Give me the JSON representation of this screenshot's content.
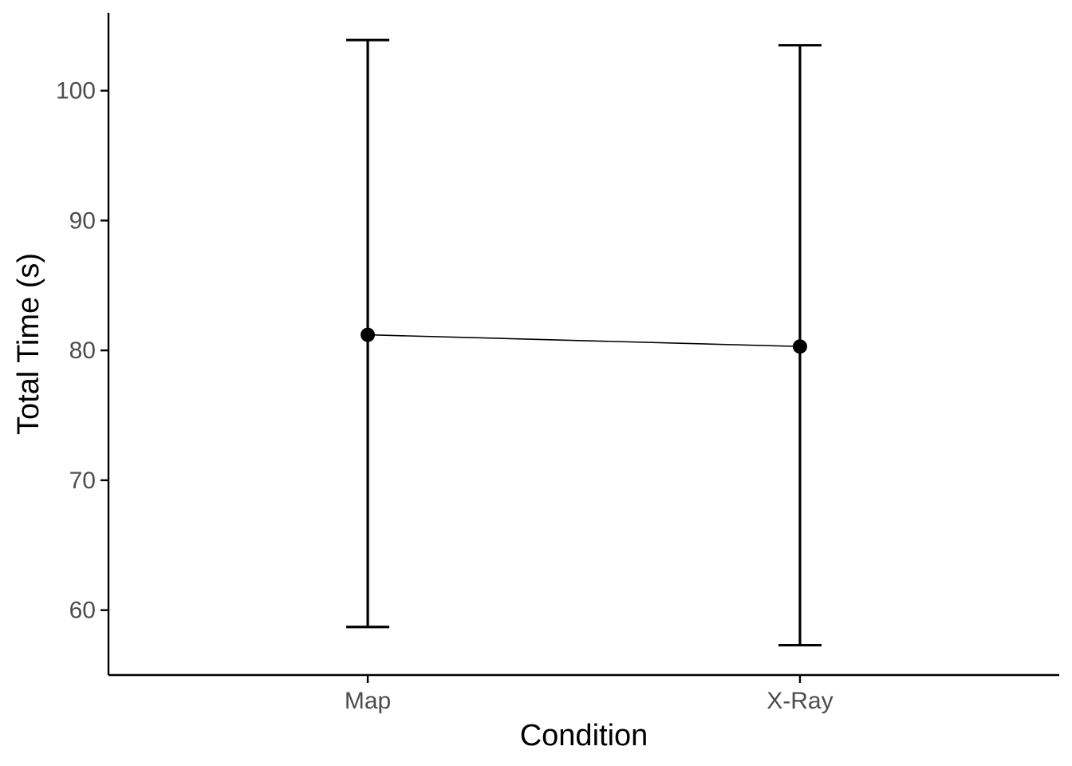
{
  "chart_data": {
    "type": "line",
    "title": "",
    "xlabel": "Condition",
    "ylabel": "Total Time (s)",
    "categories": [
      "Map",
      "X-Ray"
    ],
    "series": [
      {
        "values": [
          81.2,
          80.3
        ],
        "error_lower": [
          58.7,
          57.3
        ],
        "error_upper": [
          103.9,
          103.5
        ]
      }
    ],
    "ylim": [
      55,
      106
    ],
    "yticks": [
      60,
      70,
      80,
      90,
      100
    ],
    "ytick_labels": [
      "60",
      "70",
      "80",
      "90",
      "100"
    ],
    "grid": false,
    "legend": "none",
    "colors": {
      "series": "#000000",
      "tick_label": "#4d4d4d",
      "axis": "#000000"
    }
  }
}
